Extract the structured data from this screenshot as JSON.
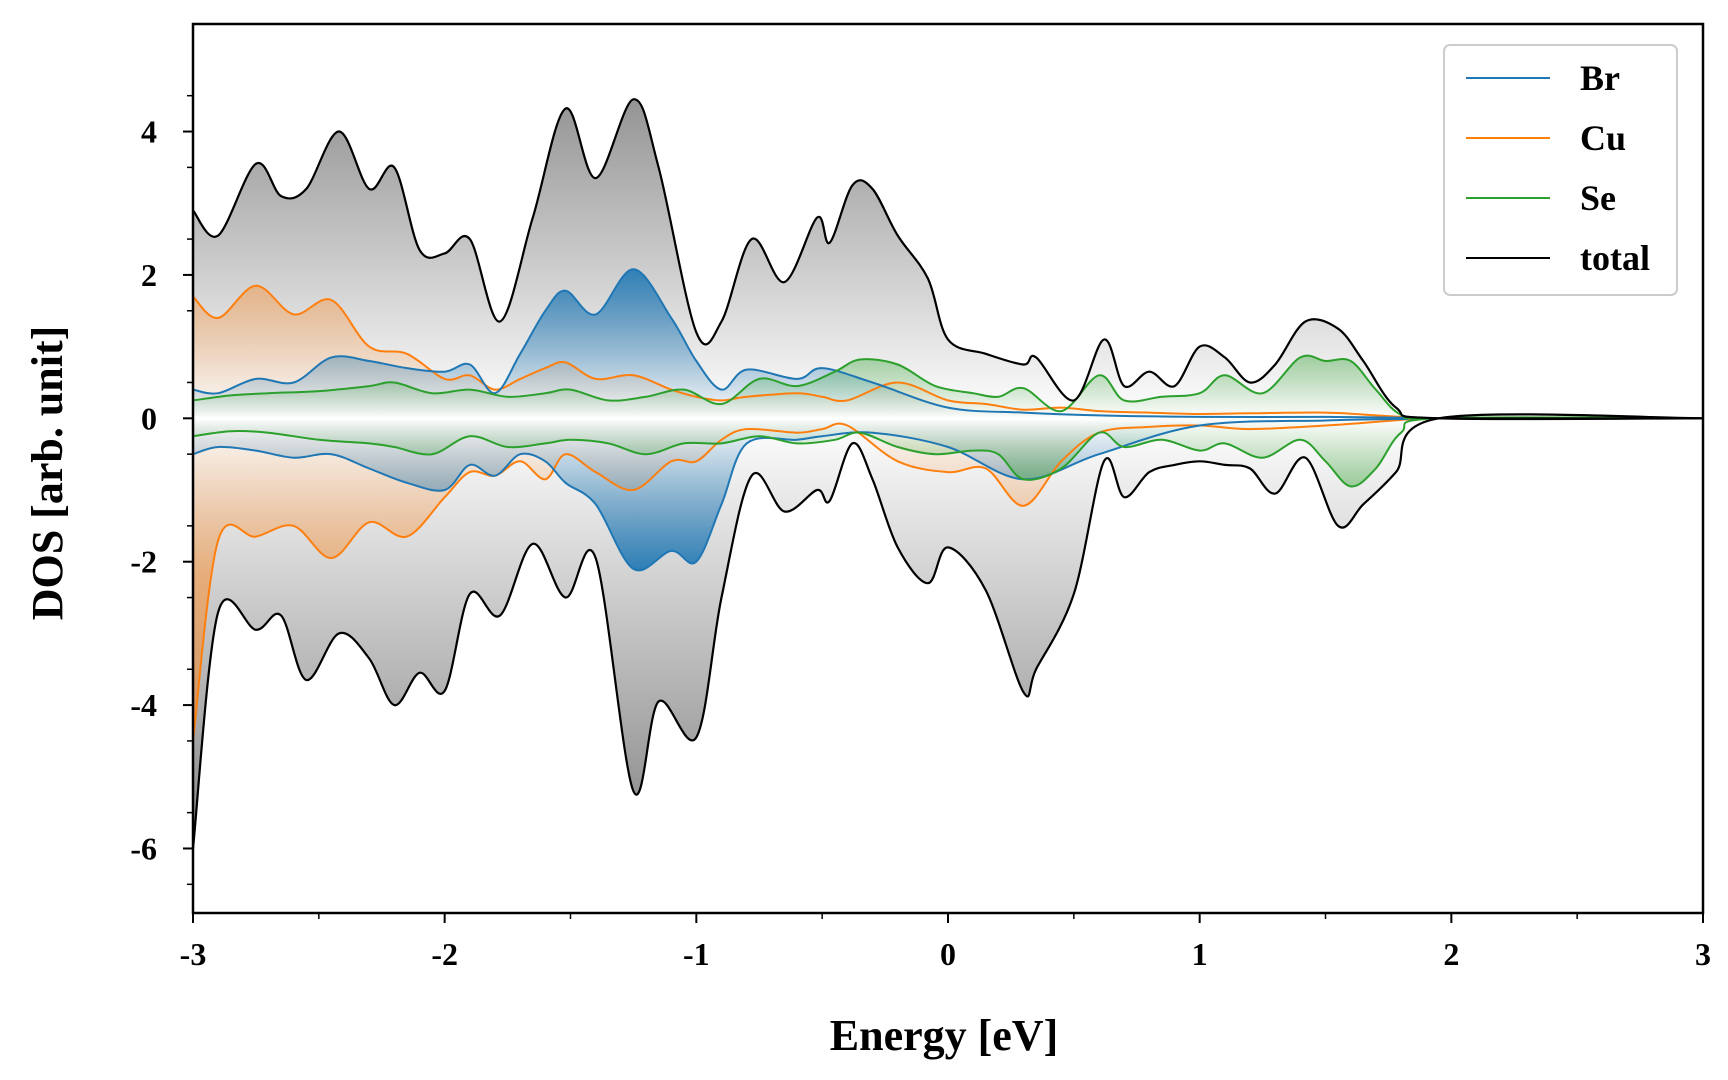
{
  "chart_data": {
    "type": "area",
    "title": "",
    "xlabel": "Energy [eV]",
    "ylabel": "DOS [arb. unit]",
    "xlim": [
      -3,
      3
    ],
    "ylim": [
      -6.9,
      5.5
    ],
    "xticks": [
      -3,
      -2,
      -1,
      0,
      1,
      2,
      3
    ],
    "yticks": [
      -6,
      -4,
      -2,
      0,
      2,
      4
    ],
    "grid": false,
    "legend_position": "top-right",
    "series": [
      {
        "name": "Br",
        "label": "Br",
        "color": "#1f77b4",
        "x": [
          -3.0,
          -2.9,
          -2.75,
          -2.6,
          -2.45,
          -2.3,
          -2.15,
          -2.0,
          -1.9,
          -1.8,
          -1.7,
          -1.6,
          -1.52,
          -1.4,
          -1.25,
          -1.1,
          -1.0,
          -0.9,
          -0.8,
          -0.6,
          -0.5,
          -0.3,
          0.0,
          0.3,
          0.6,
          1.0,
          1.5,
          1.8,
          1.95,
          3.0
        ],
        "up": [
          0.4,
          0.35,
          0.55,
          0.5,
          0.85,
          0.8,
          0.7,
          0.65,
          0.75,
          0.35,
          0.9,
          1.5,
          1.78,
          1.45,
          2.08,
          1.4,
          0.8,
          0.4,
          0.68,
          0.55,
          0.7,
          0.5,
          0.15,
          0.08,
          0.04,
          0.02,
          0.02,
          0.01,
          0.0,
          0.0
        ],
        "down": [
          -0.5,
          -0.4,
          -0.45,
          -0.55,
          -0.5,
          -0.7,
          -0.9,
          -1.0,
          -0.65,
          -0.8,
          -0.5,
          -0.6,
          -0.9,
          -1.2,
          -2.1,
          -1.85,
          -2.0,
          -1.2,
          -0.35,
          -0.3,
          -0.25,
          -0.2,
          -0.4,
          -0.85,
          -0.5,
          -0.1,
          -0.03,
          -0.01,
          0.0,
          0.0
        ]
      },
      {
        "name": "Cu",
        "label": "Cu",
        "color": "#ff7f0e",
        "x": [
          -3.0,
          -2.9,
          -2.75,
          -2.6,
          -2.45,
          -2.3,
          -2.15,
          -2.0,
          -1.9,
          -1.8,
          -1.7,
          -1.6,
          -1.52,
          -1.4,
          -1.25,
          -1.1,
          -1.0,
          -0.9,
          -0.8,
          -0.6,
          -0.5,
          -0.4,
          -0.2,
          0.0,
          0.15,
          0.3,
          0.45,
          0.6,
          0.8,
          1.0,
          1.2,
          1.5,
          1.7,
          1.85,
          1.95,
          3.0
        ],
        "up": [
          1.7,
          1.4,
          1.85,
          1.45,
          1.65,
          1.0,
          0.9,
          0.55,
          0.6,
          0.4,
          0.55,
          0.7,
          0.78,
          0.55,
          0.6,
          0.4,
          0.3,
          0.25,
          0.3,
          0.35,
          0.3,
          0.25,
          0.5,
          0.25,
          0.2,
          0.12,
          0.15,
          0.1,
          0.08,
          0.06,
          0.07,
          0.08,
          0.04,
          0.01,
          0.0,
          0.0
        ],
        "down": [
          -4.5,
          -1.7,
          -1.65,
          -1.5,
          -1.95,
          -1.45,
          -1.65,
          -1.1,
          -0.75,
          -0.8,
          -0.6,
          -0.85,
          -0.5,
          -0.75,
          -1.0,
          -0.6,
          -0.6,
          -0.3,
          -0.15,
          -0.2,
          -0.15,
          -0.1,
          -0.6,
          -0.75,
          -0.7,
          -1.22,
          -0.6,
          -0.2,
          -0.12,
          -0.1,
          -0.15,
          -0.1,
          -0.05,
          -0.01,
          0.0,
          0.0
        ]
      },
      {
        "name": "Se",
        "label": "Se",
        "color": "#2ca02c",
        "x": [
          -3.0,
          -2.85,
          -2.7,
          -2.5,
          -2.3,
          -2.2,
          -2.05,
          -1.9,
          -1.75,
          -1.6,
          -1.5,
          -1.35,
          -1.2,
          -1.05,
          -0.9,
          -0.75,
          -0.6,
          -0.45,
          -0.35,
          -0.2,
          -0.05,
          0.1,
          0.2,
          0.3,
          0.45,
          0.6,
          0.7,
          0.85,
          1.0,
          1.1,
          1.25,
          1.4,
          1.5,
          1.6,
          1.7,
          1.8,
          1.95,
          3.0
        ],
        "up": [
          0.25,
          0.32,
          0.35,
          0.38,
          0.45,
          0.5,
          0.35,
          0.4,
          0.3,
          0.35,
          0.4,
          0.25,
          0.3,
          0.4,
          0.2,
          0.55,
          0.45,
          0.65,
          0.82,
          0.75,
          0.45,
          0.35,
          0.3,
          0.42,
          0.1,
          0.6,
          0.25,
          0.3,
          0.35,
          0.6,
          0.35,
          0.85,
          0.8,
          0.8,
          0.4,
          0.05,
          0.0,
          0.0
        ],
        "down": [
          -0.25,
          -0.18,
          -0.2,
          -0.3,
          -0.35,
          -0.4,
          -0.5,
          -0.25,
          -0.4,
          -0.35,
          -0.3,
          -0.35,
          -0.5,
          -0.35,
          -0.35,
          -0.25,
          -0.35,
          -0.3,
          -0.2,
          -0.4,
          -0.5,
          -0.45,
          -0.5,
          -0.85,
          -0.7,
          -0.2,
          -0.4,
          -0.3,
          -0.45,
          -0.35,
          -0.55,
          -0.3,
          -0.6,
          -0.95,
          -0.7,
          -0.2,
          0.0,
          0.0
        ]
      },
      {
        "name": "total",
        "label": "total",
        "color": "#000000",
        "x": [
          -3.0,
          -2.9,
          -2.75,
          -2.65,
          -2.55,
          -2.42,
          -2.3,
          -2.2,
          -2.1,
          -2.0,
          -1.9,
          -1.78,
          -1.65,
          -1.52,
          -1.4,
          -1.25,
          -1.15,
          -1.0,
          -0.9,
          -0.78,
          -0.65,
          -0.52,
          -0.47,
          -0.38,
          -0.3,
          -0.2,
          -0.08,
          0.0,
          0.15,
          0.3,
          0.35,
          0.5,
          0.62,
          0.7,
          0.8,
          0.9,
          1.0,
          1.1,
          1.2,
          1.3,
          1.42,
          1.55,
          1.65,
          1.78,
          1.95,
          3.0
        ],
        "up": [
          2.9,
          2.55,
          3.55,
          3.1,
          3.2,
          4.0,
          3.2,
          3.5,
          2.35,
          2.3,
          2.5,
          1.35,
          2.8,
          4.32,
          3.35,
          4.45,
          3.5,
          1.2,
          1.35,
          2.5,
          1.9,
          2.8,
          2.45,
          3.25,
          3.2,
          2.55,
          1.95,
          1.1,
          0.9,
          0.75,
          0.85,
          0.25,
          1.1,
          0.45,
          0.65,
          0.45,
          1.0,
          0.85,
          0.5,
          0.75,
          1.35,
          1.25,
          0.8,
          0.15,
          0.0,
          0.0
        ],
        "down": [
          -6.0,
          -2.7,
          -2.95,
          -2.75,
          -3.65,
          -3.0,
          -3.35,
          -4.0,
          -3.55,
          -3.8,
          -2.45,
          -2.75,
          -1.75,
          -2.5,
          -1.95,
          -5.2,
          -3.95,
          -4.45,
          -2.5,
          -0.8,
          -1.3,
          -1.0,
          -1.15,
          -0.35,
          -0.85,
          -1.8,
          -2.3,
          -1.8,
          -2.4,
          -3.82,
          -3.5,
          -2.45,
          -0.6,
          -1.1,
          -0.75,
          -0.65,
          -0.6,
          -0.65,
          -0.7,
          -1.05,
          -0.55,
          -1.5,
          -1.2,
          -0.75,
          0.0,
          0.0
        ]
      }
    ]
  }
}
